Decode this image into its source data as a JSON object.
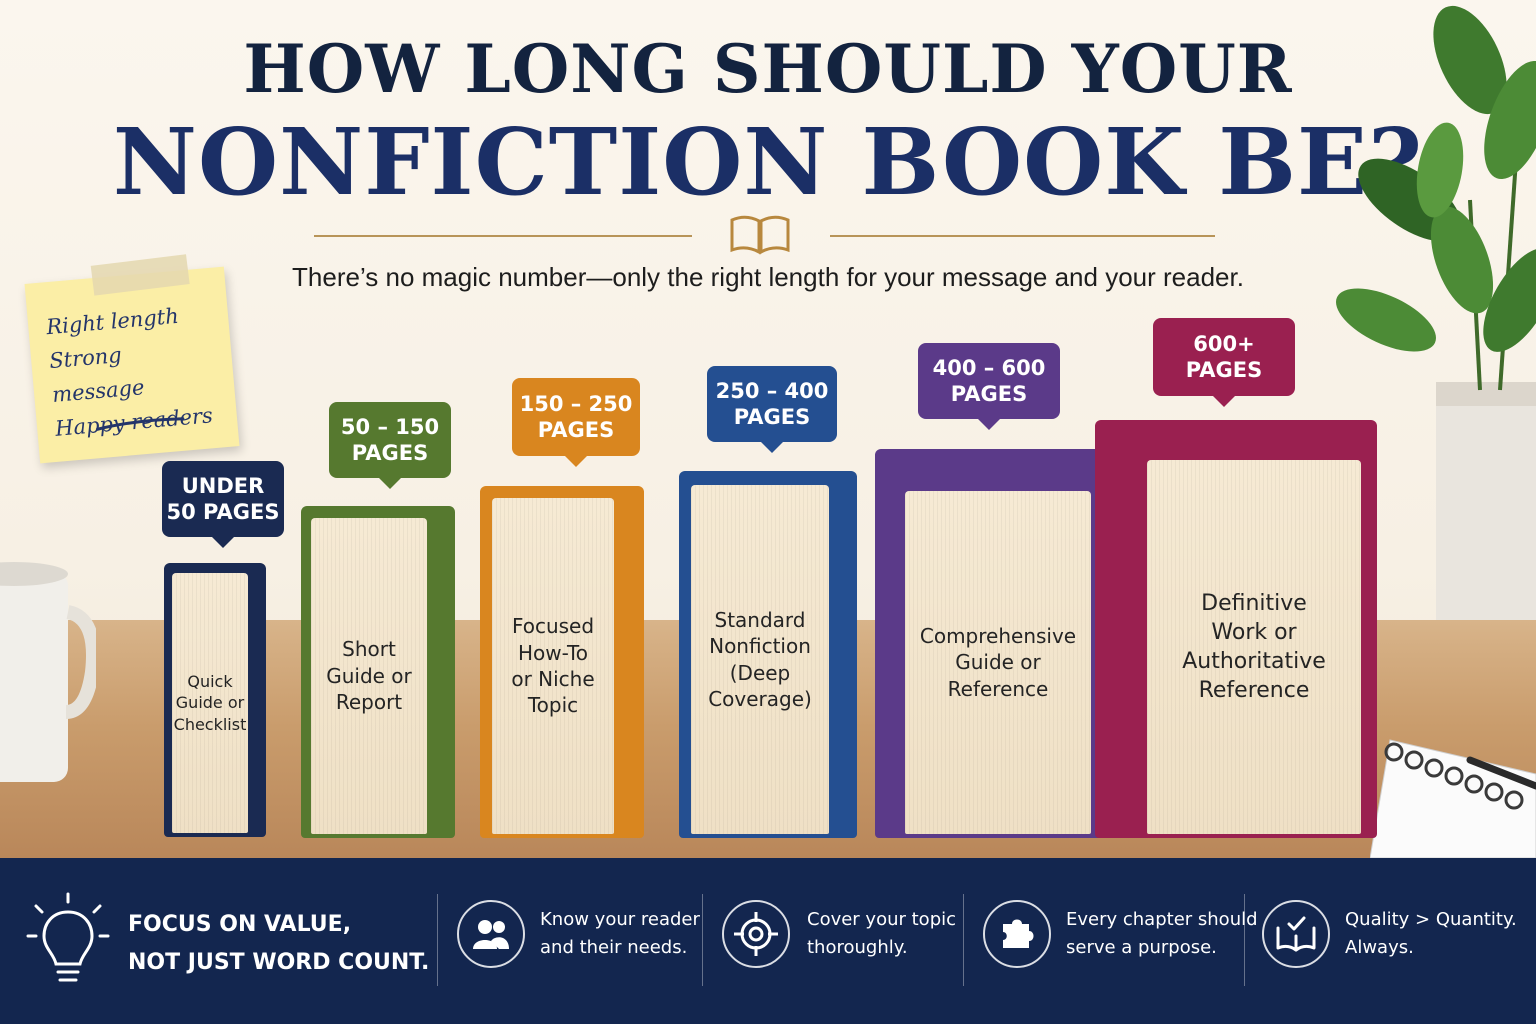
{
  "header": {
    "title_line1": "HOW LONG SHOULD YOUR",
    "title_line2": "NONFICTION BOOK BE?",
    "subtitle": "There’s no magic number—only the right length for your message and your reader."
  },
  "sticky_note": {
    "lines": [
      "Right length",
      "Strong message",
      "Happy readers"
    ]
  },
  "books": [
    {
      "range": "UNDER\n50 PAGES",
      "type": "Quick\nGuide or\nChecklist",
      "color": "#1a2a52"
    },
    {
      "range": "50 – 150\nPAGES",
      "type": "Short\nGuide or\nReport",
      "color": "#56792f"
    },
    {
      "range": "150 – 250\nPAGES",
      "type": "Focused\nHow-To\nor Niche\nTopic",
      "color": "#d9861f"
    },
    {
      "range": "250 – 400\nPAGES",
      "type": "Standard\nNonfiction\n(Deep\nCoverage)",
      "color": "#244f91"
    },
    {
      "range": "400 – 600\nPAGES",
      "type": "Comprehensive\nGuide or\nReference",
      "color": "#5b3a89"
    },
    {
      "range": "600+\nPAGES",
      "type": "Definitive\nWork or\nAuthoritative\nReference",
      "color": "#9a2050"
    }
  ],
  "footer": {
    "headline_line1": "FOCUS ON VALUE,",
    "headline_line2": "NOT JUST WORD COUNT.",
    "tips": [
      {
        "icon": "people-icon",
        "line1": "Know your reader",
        "line2": "and their needs."
      },
      {
        "icon": "target-icon",
        "line1": "Cover your topic",
        "line2": "thoroughly."
      },
      {
        "icon": "puzzle-icon",
        "line1": "Every chapter should",
        "line2": "serve a purpose."
      },
      {
        "icon": "book-check-icon",
        "line1": "Quality > Quantity.",
        "line2": "Always."
      }
    ]
  },
  "colors": {
    "navy": "#13264f",
    "title": "#1b2f66",
    "gold": "#b89458"
  }
}
